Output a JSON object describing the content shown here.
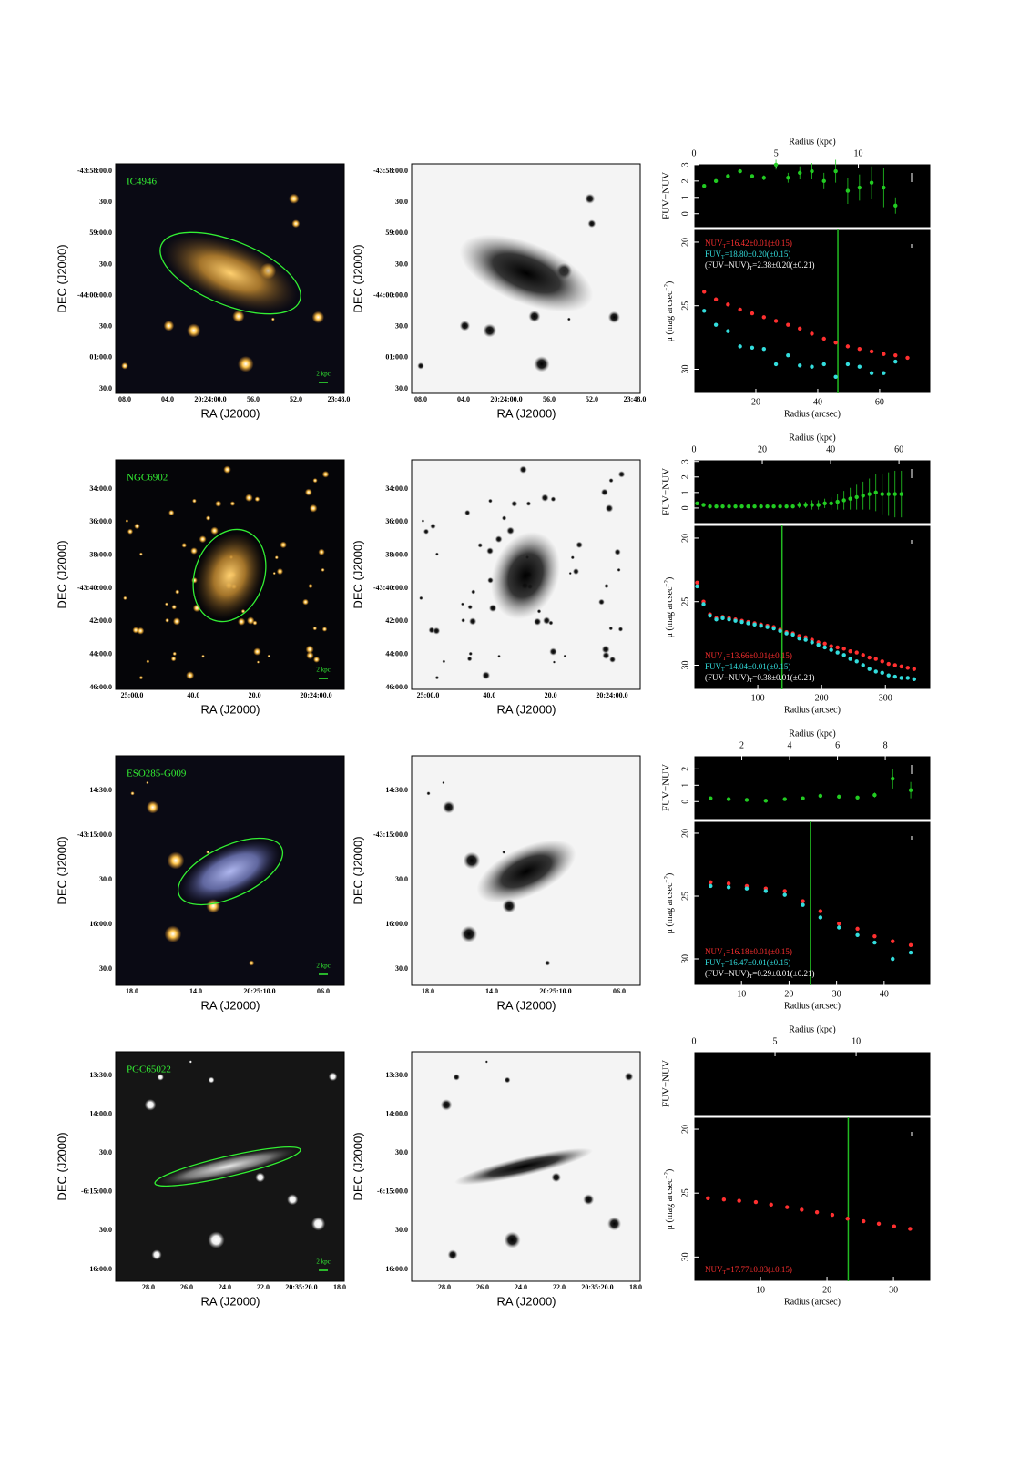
{
  "rows": [
    {
      "name": "IC4946",
      "scale_bar": "2 kpc",
      "xlabel": "RA (J2000)",
      "ylabel": "DEC (J2000)",
      "dec_ticks": [
        "-43:58:00.0",
        "30.0",
        "59:00.0",
        "30.0",
        "-44:00:00.0",
        "30.0",
        "01:00.0",
        "30.0"
      ],
      "ra_ticks": [
        "08.0",
        "04.0",
        "20:24:00.0",
        "56.0",
        "52.0",
        "23:48.0"
      ]
    },
    {
      "name": "NGC6902",
      "scale_bar": "2 kpc",
      "xlabel": "RA (J2000)",
      "ylabel": "DEC (J2000)",
      "dec_ticks": [
        "34:00.0",
        "36:00.0",
        "38:00.0",
        "-43:40:00.0",
        "42:00.0",
        "44:00.0",
        "46:00.0"
      ],
      "ra_ticks": [
        "25:00.0",
        "40.0",
        "20.0",
        "20:24:00.0"
      ]
    },
    {
      "name": "ESO285-G009",
      "scale_bar": "2 kpc",
      "xlabel": "RA (J2000)",
      "ylabel": "DEC (J2000)",
      "dec_ticks": [
        "14:30.0",
        "-43:15:00.0",
        "30.0",
        "16:00.0",
        "30.0"
      ],
      "ra_ticks": [
        "18.0",
        "14.0",
        "20:25:10.0",
        "06.0"
      ]
    },
    {
      "name": "PGC65022",
      "scale_bar": "2 kpc",
      "xlabel": "RA (J2000)",
      "ylabel": "DEC (J2000)",
      "dec_ticks": [
        "13:30.0",
        "14:00.0",
        "30.0",
        "-6:15:00.0",
        "30.0",
        "16:00.0"
      ],
      "ra_ticks": [
        "28.0",
        "26.0",
        "24.0",
        "22.0",
        "20:35:20.0",
        "18.0"
      ]
    }
  ],
  "chart_data": [
    {
      "type": "profile",
      "kpc_label": "Radius (kpc)",
      "kpc_lim": [
        0,
        14.4
      ],
      "kpc_ticks": [
        0,
        5,
        10
      ],
      "color_label": "FUV−NUV",
      "color_lim": [
        -0.85,
        3.05
      ],
      "color_ticks": [
        0,
        1,
        2,
        3
      ],
      "mu_label": [
        "μ (mag arcsec",
        "−2",
        ")"
      ],
      "mu_lim": [
        31.9,
        19
      ],
      "mu_ticks": [
        20,
        25,
        30
      ],
      "xlabel": "Radius (arcsec)",
      "xlim": [
        0,
        76.5
      ],
      "xticks": [
        20,
        40,
        60
      ],
      "x": [
        3.3,
        7.1,
        11,
        14.9,
        18.8,
        22.6,
        26.5,
        30.4,
        34.2,
        38.1,
        42,
        45.8,
        49.7,
        53.5,
        57.4,
        61.3,
        65.1,
        69
      ],
      "series": [
        {
          "panel": "color",
          "color": "#22cc22",
          "values": [
            1.7,
            2.0,
            2.3,
            2.6,
            2.3,
            2.2,
            3.0,
            2.2,
            2.5,
            2.6,
            2.0,
            2.6,
            1.4,
            1.6,
            1.9,
            1.6,
            0.5,
            null
          ],
          "errors": [
            0.05,
            0.05,
            0.1,
            0.1,
            0.1,
            0.15,
            0.3,
            0.3,
            0.4,
            0.5,
            0.5,
            0.7,
            0.8,
            0.8,
            1.0,
            1.2,
            0.5,
            null
          ]
        },
        {
          "panel": "mu",
          "color": "#ff3030",
          "values": [
            23.9,
            24.5,
            24.9,
            25.3,
            25.6,
            25.9,
            26.2,
            26.5,
            26.8,
            27.2,
            27.6,
            27.9,
            28.2,
            28.4,
            28.6,
            28.8,
            28.9,
            29.1
          ]
        },
        {
          "panel": "mu",
          "color": "#33dddd",
          "values": [
            25.4,
            26.5,
            27.0,
            28.2,
            28.3,
            28.4,
            29.6,
            28.9,
            29.7,
            29.8,
            29.6,
            30.6,
            29.6,
            29.8,
            30.3,
            30.3,
            29.4,
            null
          ]
        }
      ],
      "aperture": 46.5,
      "legend_loc": "upper left",
      "legend": [
        {
          "label": "NUV",
          "sub": "T",
          "text": "=16.42±0.01(±0.15)",
          "color": "#ff3030"
        },
        {
          "label": "FUV",
          "sub": "T",
          "text": "=18.80±0.20(±0.15)",
          "color": "#33dddd"
        },
        {
          "label": "(FUV−NUV)",
          "sub": "T",
          "text": "=2.38±0.20(±0.21)",
          "color": "#ffffff"
        }
      ]
    },
    {
      "type": "profile",
      "kpc_label": "Radius (kpc)",
      "kpc_lim": [
        0,
        69.3
      ],
      "kpc_ticks": [
        0,
        20,
        40,
        60
      ],
      "color_label": "FUV−NUV",
      "color_lim": [
        -1.0,
        3.1
      ],
      "color_ticks": [
        0,
        1,
        2,
        3
      ],
      "mu_label": [
        "μ (mag arcsec",
        "−2",
        ")"
      ],
      "mu_lim": [
        31.9,
        19
      ],
      "mu_ticks": [
        20,
        25,
        30
      ],
      "xlabel": "Radius (arcsec)",
      "xlim": [
        0,
        371
      ],
      "xticks": [
        100,
        200,
        300
      ],
      "x": [
        5,
        15,
        25,
        35,
        45,
        55,
        65,
        75,
        85,
        95,
        105,
        115,
        125,
        135,
        145,
        155,
        165,
        175,
        185,
        195,
        205,
        215,
        225,
        235,
        245,
        255,
        265,
        275,
        285,
        295,
        305,
        315,
        325,
        335,
        345
      ],
      "series": [
        {
          "panel": "color",
          "color": "#22cc22",
          "values": [
            0.3,
            0.2,
            0.1,
            0.1,
            0.1,
            0.1,
            0.1,
            0.1,
            0.1,
            0.1,
            0.1,
            0.1,
            0.1,
            0.1,
            0.1,
            0.1,
            0.2,
            0.2,
            0.2,
            0.2,
            0.3,
            0.3,
            0.4,
            0.5,
            0.6,
            0.7,
            0.8,
            0.9,
            1.0,
            0.9,
            0.9,
            0.9,
            0.9,
            null,
            null
          ],
          "errors": [
            0.1,
            0.1,
            0.1,
            0.1,
            0.1,
            0.1,
            0.1,
            0.1,
            0.1,
            0.1,
            0.1,
            0.1,
            0.1,
            0.1,
            0.1,
            0.1,
            0.2,
            0.2,
            0.3,
            0.3,
            0.3,
            0.4,
            0.5,
            0.6,
            0.7,
            0.8,
            0.9,
            1.0,
            1.2,
            1.3,
            1.4,
            1.5,
            1.5,
            null,
            null
          ]
        },
        {
          "panel": "mu",
          "color": "#ff3030",
          "values": [
            23.5,
            25.0,
            26.0,
            26.3,
            26.2,
            26.3,
            26.4,
            26.5,
            26.6,
            26.7,
            26.8,
            26.9,
            27.0,
            27.2,
            27.4,
            27.5,
            27.7,
            27.8,
            28.0,
            28.2,
            28.3,
            28.5,
            28.6,
            28.7,
            28.9,
            29.0,
            29.2,
            29.4,
            29.5,
            29.7,
            29.9,
            30.0,
            30.1,
            30.2,
            30.3
          ]
        },
        {
          "panel": "mu",
          "color": "#33dddd",
          "values": [
            23.8,
            25.2,
            26.1,
            26.4,
            26.3,
            26.4,
            26.5,
            26.6,
            26.7,
            26.8,
            26.9,
            27.0,
            27.1,
            27.3,
            27.5,
            27.6,
            27.9,
            28.0,
            28.2,
            28.4,
            28.6,
            28.8,
            29.0,
            29.2,
            29.5,
            29.7,
            30.0,
            30.3,
            30.5,
            30.6,
            30.8,
            30.9,
            31.0,
            31.0,
            31.1
          ]
        }
      ],
      "aperture": 138,
      "legend_loc": "lower left",
      "legend": [
        {
          "label": "NUV",
          "sub": "T",
          "text": "=13.66±0.01(±0.15)",
          "color": "#ff3030"
        },
        {
          "label": "FUV",
          "sub": "T",
          "text": "=14.04±0.01(±0.15)",
          "color": "#33dddd"
        },
        {
          "label": "(FUV−NUV)",
          "sub": "T",
          "text": "=0.38±0.01(±0.21)",
          "color": "#ffffff"
        }
      ]
    },
    {
      "type": "profile",
      "kpc_label": "Radius (kpc)",
      "kpc_lim": [
        0,
        9.9
      ],
      "kpc_ticks": [
        2,
        4,
        6,
        8
      ],
      "color_label": "FUV−NUV",
      "color_lim": [
        -1.1,
        2.8
      ],
      "color_ticks": [
        0,
        1,
        2
      ],
      "mu_label": [
        "μ (mag arcsec",
        "−2",
        ")"
      ],
      "mu_lim": [
        32.1,
        19.06
      ],
      "mu_ticks": [
        20,
        25,
        30
      ],
      "xlabel": "Radius (arcsec)",
      "xlim": [
        0,
        49.8
      ],
      "xticks": [
        10,
        20,
        30,
        40
      ],
      "x": [
        3.5,
        7.3,
        11.1,
        15.1,
        19.1,
        22.9,
        26.6,
        30.5,
        34.4,
        38,
        41.8,
        45.6
      ],
      "series": [
        {
          "panel": "color",
          "color": "#22cc22",
          "values": [
            0.2,
            0.15,
            0.1,
            0.05,
            0.15,
            0.2,
            0.35,
            0.3,
            0.25,
            0.4,
            1.4,
            0.7
          ],
          "errors": [
            0.05,
            0.05,
            0.05,
            0.05,
            0.05,
            0.05,
            0.05,
            0.05,
            0.1,
            0.15,
            0.6,
            0.5
          ]
        },
        {
          "panel": "mu",
          "color": "#ff3030",
          "values": [
            23.9,
            24.0,
            24.2,
            24.4,
            24.6,
            25.4,
            26.2,
            27.2,
            27.6,
            28.2,
            28.6,
            28.9
          ]
        },
        {
          "panel": "mu",
          "color": "#33dddd",
          "values": [
            24.2,
            24.3,
            24.4,
            24.6,
            24.9,
            25.7,
            26.7,
            27.5,
            28.1,
            28.7,
            30.0,
            29.5
          ]
        }
      ],
      "aperture": 24.5,
      "legend_loc": "lower left",
      "legend": [
        {
          "label": "NUV",
          "sub": "T",
          "text": "=16.18±0.01(±0.15)",
          "color": "#ff3030"
        },
        {
          "label": "FUV",
          "sub": "T",
          "text": "=16.47±0.01(±0.15)",
          "color": "#33dddd"
        },
        {
          "label": "(FUV−NUV)",
          "sub": "T",
          "text": "=0.29±0.01(±0.21)",
          "color": "#ffffff"
        }
      ]
    },
    {
      "type": "profile",
      "kpc_label": "Radius (kpc)",
      "kpc_lim": [
        0,
        14.6
      ],
      "kpc_ticks": [
        0,
        5,
        10
      ],
      "color_label": "FUV−NUV",
      "mu_label": [
        "μ (mag arcsec",
        "−2",
        ")"
      ],
      "mu_lim": [
        31.9,
        19.07
      ],
      "mu_ticks": [
        20,
        25,
        30
      ],
      "xlabel": "Radius (arcsec)",
      "xlim": [
        0,
        35.6
      ],
      "xticks": [
        10,
        20,
        30
      ],
      "x": [
        2.1,
        4.5,
        6.8,
        9.3,
        11.6,
        14,
        16.2,
        18.5,
        20.8,
        23.1,
        25.5,
        27.8,
        30.1,
        32.5
      ],
      "series": [
        {
          "panel": "mu",
          "color": "#ff3030",
          "values": [
            25.4,
            25.5,
            25.6,
            25.7,
            25.9,
            26.1,
            26.3,
            26.5,
            26.7,
            27.0,
            27.2,
            27.4,
            27.6,
            27.8
          ]
        }
      ],
      "aperture": 23.2,
      "legend_loc": "lower left",
      "legend": [
        {
          "label": "NUV",
          "sub": "T",
          "text": "=17.77±0.03(±0.15)",
          "color": "#ff3030"
        }
      ]
    }
  ]
}
